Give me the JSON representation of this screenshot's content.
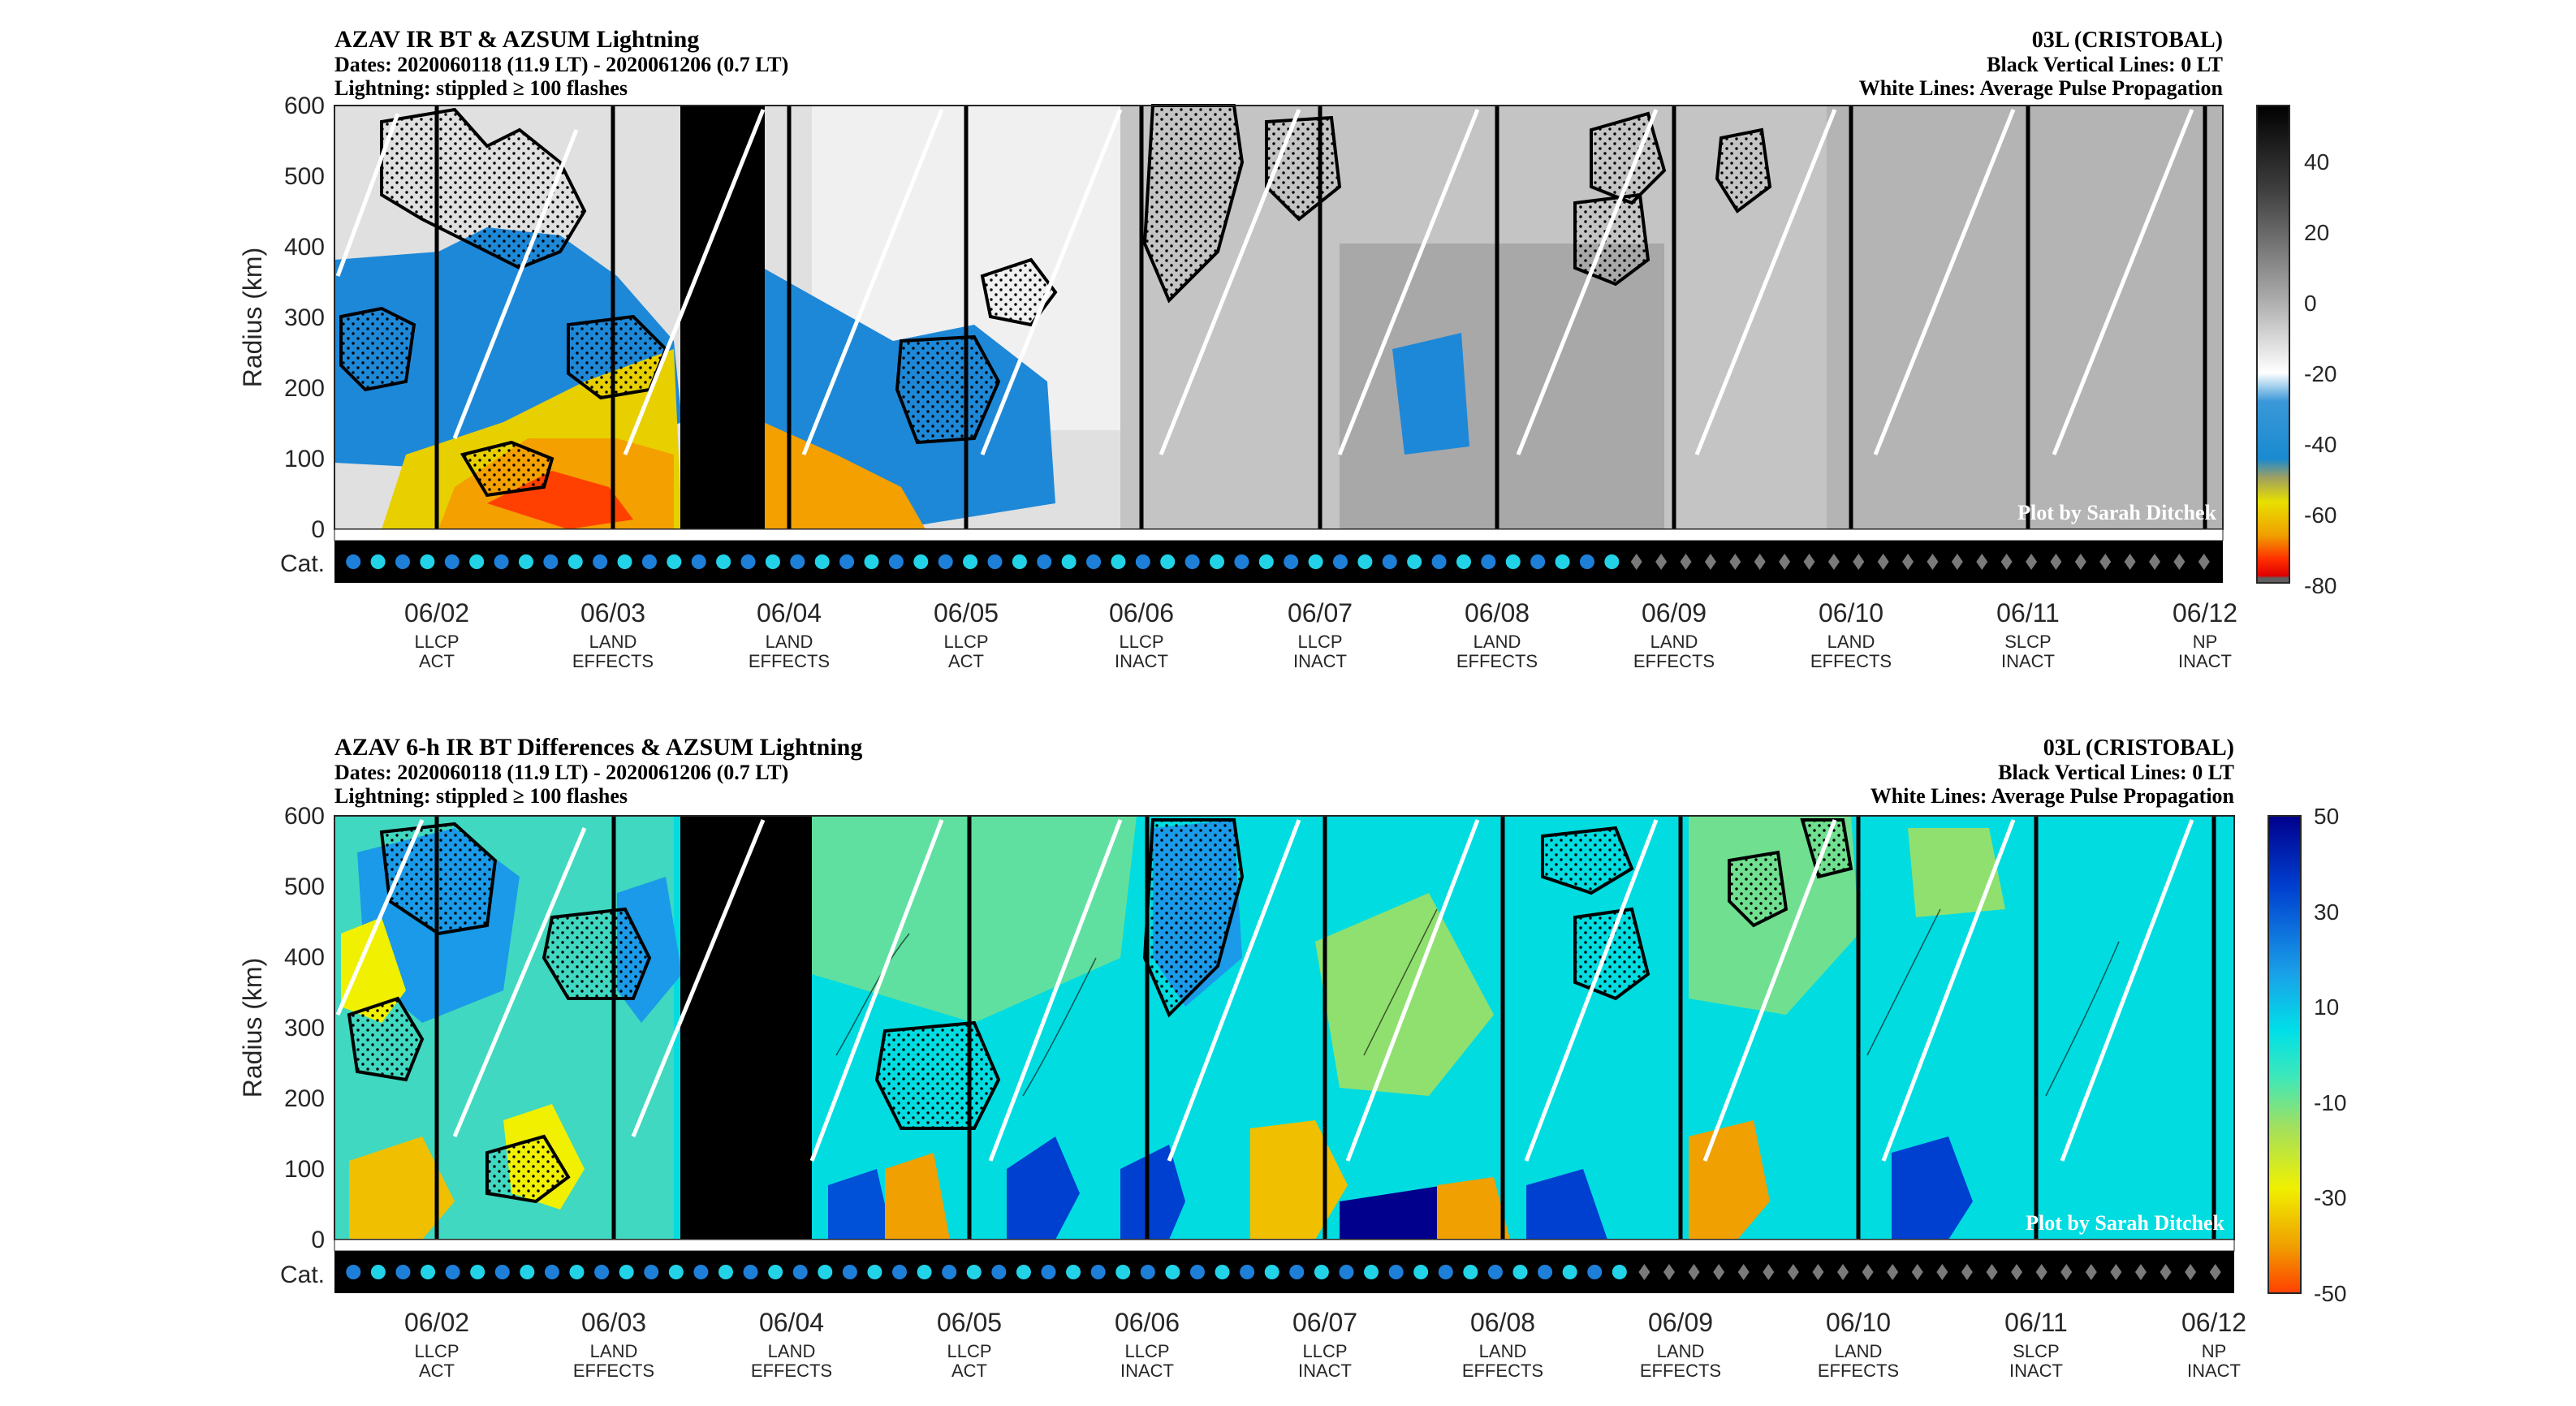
{
  "panels": [
    {
      "title": "AZAV IR BT & AZSUM Lightning",
      "dates": "Dates: 2020060118 (11.9 LT) - 2020061206 (0.7 LT)",
      "lightning_note": "Lightning: stippled ≥ 100 flashes",
      "storm": "03L (CRISTOBAL)",
      "vertical_note": "Black Vertical Lines: 0 LT",
      "white_note": "White Lines: Average Pulse Propagation",
      "credit": "Plot by Sarah Ditchek",
      "ylabel": "Radius (km)",
      "cat_label": "Cat.",
      "colorbar_ticks": [
        "40",
        "20",
        "0",
        "-20",
        "-40",
        "-60",
        "-80"
      ],
      "colors": [
        "#000000",
        "#555555",
        "#9a9a9a",
        "#d0d0d0",
        "#f2f2f2",
        "#1e88d8",
        "#cfd000",
        "#f3a000",
        "#ff4000",
        "#e00000"
      ]
    },
    {
      "title": "AZAV 6-h IR BT Differences & AZSUM Lightning",
      "dates": "Dates: 2020060118 (11.9 LT) - 2020061206 (0.7 LT)",
      "lightning_note": "Lightning: stippled ≥ 100 flashes",
      "storm": "03L (CRISTOBAL)",
      "vertical_note": "Black Vertical Lines: 0 LT",
      "white_note": "White Lines: Average Pulse Propagation",
      "credit": "Plot by Sarah Ditchek",
      "ylabel": "Radius (km)",
      "cat_label": "Cat.",
      "colorbar_ticks": [
        "50",
        "30",
        "10",
        "-10",
        "-30",
        "-50"
      ],
      "colors": [
        "#00008c",
        "#0050d8",
        "#1a9ae8",
        "#00e0e8",
        "#59e6a0",
        "#a8e050",
        "#f0f000",
        "#f0a000",
        "#ff4000"
      ]
    }
  ],
  "chart_data": [
    {
      "type": "heatmap",
      "title": "AZAV IR BT & AZSUM Lightning",
      "ylabel": "Radius (km)",
      "ylim": [
        0,
        600
      ],
      "y_ticks": [
        0,
        100,
        200,
        300,
        400,
        500,
        600
      ],
      "x_ticks": [
        {
          "date": "06/02",
          "line1": "LLCP",
          "line2": "ACT"
        },
        {
          "date": "06/03",
          "line1": "LAND",
          "line2": "EFFECTS"
        },
        {
          "date": "06/04",
          "line1": "LAND",
          "line2": "EFFECTS"
        },
        {
          "date": "06/05",
          "line1": "LLCP",
          "line2": "ACT"
        },
        {
          "date": "06/06",
          "line1": "LLCP",
          "line2": "INACT"
        },
        {
          "date": "06/07",
          "line1": "LLCP",
          "line2": "INACT"
        },
        {
          "date": "06/08",
          "line1": "LAND",
          "line2": "EFFECTS"
        },
        {
          "date": "06/09",
          "line1": "LAND",
          "line2": "EFFECTS"
        },
        {
          "date": "06/10",
          "line1": "LAND",
          "line2": "EFFECTS"
        },
        {
          "date": "06/11",
          "line1": "SLCP",
          "line2": "INACT"
        },
        {
          "date": "06/12",
          "line1": "NP",
          "line2": "INACT"
        }
      ],
      "colorbar_range": [
        -80,
        55
      ],
      "category_markers": "52 circles (dark blue/cyan alternating) then 24 grey diamonds"
    },
    {
      "type": "heatmap",
      "title": "AZAV 6-h IR BT Differences & AZSUM Lightning",
      "ylabel": "Radius (km)",
      "ylim": [
        0,
        600
      ],
      "y_ticks": [
        0,
        100,
        200,
        300,
        400,
        500,
        600
      ],
      "x_ticks": [
        {
          "date": "06/02",
          "line1": "LLCP",
          "line2": "ACT"
        },
        {
          "date": "06/03",
          "line1": "LAND",
          "line2": "EFFECTS"
        },
        {
          "date": "06/04",
          "line1": "LAND",
          "line2": "EFFECTS"
        },
        {
          "date": "06/05",
          "line1": "LLCP",
          "line2": "ACT"
        },
        {
          "date": "06/06",
          "line1": "LLCP",
          "line2": "INACT"
        },
        {
          "date": "06/07",
          "line1": "LLCP",
          "line2": "INACT"
        },
        {
          "date": "06/08",
          "line1": "LAND",
          "line2": "EFFECTS"
        },
        {
          "date": "06/09",
          "line1": "LAND",
          "line2": "EFFECTS"
        },
        {
          "date": "06/10",
          "line1": "LAND",
          "line2": "EFFECTS"
        },
        {
          "date": "06/11",
          "line1": "SLCP",
          "line2": "INACT"
        },
        {
          "date": "06/12",
          "line1": "NP",
          "line2": "INACT"
        }
      ],
      "colorbar_range": [
        -50,
        50
      ],
      "category_markers": "52 circles (dark blue/cyan alternating) then 24 grey diamonds"
    }
  ]
}
